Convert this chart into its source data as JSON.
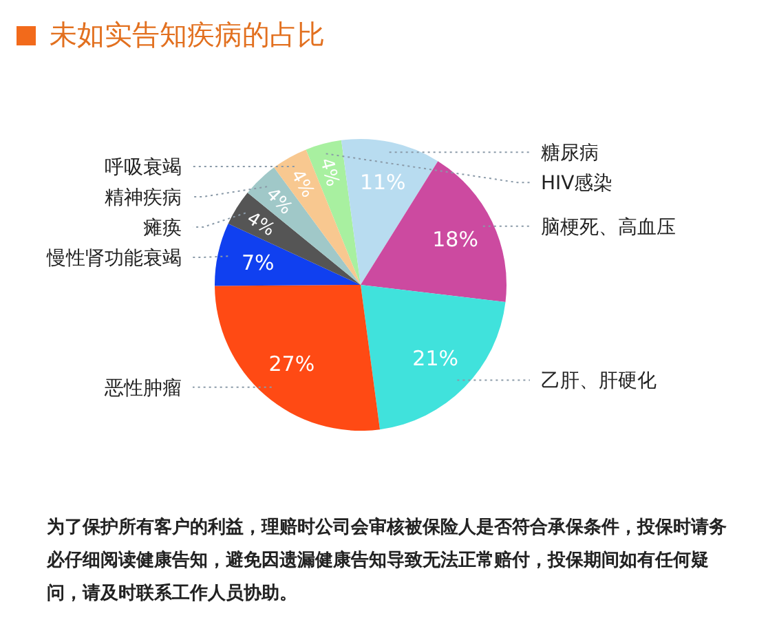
{
  "chart_data": {
    "type": "pie",
    "title": "未如实告知疾病的占比",
    "categories": [
      "HIV感染",
      "糖尿病",
      "脑梗死、高血压",
      "乙肝、肝硬化",
      "恶性肿瘤",
      "慢性肾功能衰竭",
      "瘫痪",
      "精神疾病",
      "呼吸衰竭"
    ],
    "values": [
      4,
      11,
      18,
      21,
      27,
      7,
      4,
      4,
      4
    ],
    "colors": [
      "#a8f0a0",
      "#b8dcf0",
      "#cc4aa0",
      "#40e2dc",
      "#ff4a14",
      "#1040f0",
      "#555555",
      "#a0c8c8",
      "#f8c890"
    ],
    "value_labels": [
      "4%",
      "11%",
      "18%",
      "21%",
      "27%",
      "7%",
      "4%",
      "4%",
      "4%"
    ],
    "annotations": [
      "为了保护所有客户的利益，理赔时公司会审核被保险人是否符合承保条件，投保时请务必仔细阅读健康告知，避免因遗漏健康告知导致无法正常赔付，投保期间如有任何疑问，请及时联系工作人员协助。"
    ]
  }
}
